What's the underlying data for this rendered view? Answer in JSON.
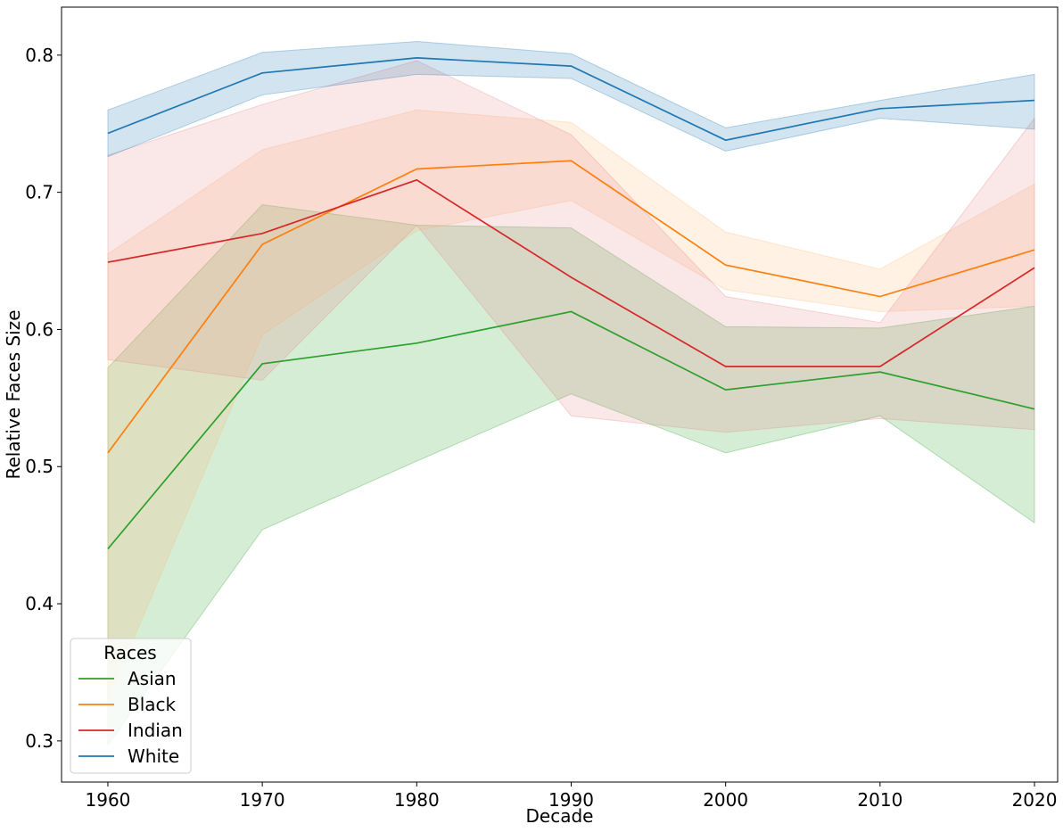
{
  "chart_data": {
    "type": "line",
    "title": "",
    "xlabel": "Decade",
    "ylabel": "Relative Faces Size",
    "x": [
      1960,
      1970,
      1980,
      1990,
      2000,
      2010,
      2020
    ],
    "xticks": [
      "1960",
      "1970",
      "1980",
      "1990",
      "2000",
      "2010",
      "2020"
    ],
    "yticks": [
      "0.3",
      "0.4",
      "0.5",
      "0.6",
      "0.7",
      "0.8"
    ],
    "ylim": [
      0.27,
      0.835
    ],
    "xlim": [
      1957,
      2021.5
    ],
    "grid": false,
    "legend": {
      "title": "Races",
      "placement": "lower-left"
    },
    "series": [
      {
        "name": "Asian",
        "color": "#2ca02c",
        "fill": "#2ca02c",
        "values": [
          0.44,
          0.575,
          0.59,
          0.613,
          0.556,
          0.569,
          0.542
        ],
        "ci_low": [
          0.297,
          0.454,
          0.504,
          0.553,
          0.51,
          0.537,
          0.459
        ],
        "ci_high": [
          0.572,
          0.691,
          0.676,
          0.674,
          0.602,
          0.601,
          0.617
        ]
      },
      {
        "name": "Black",
        "color": "#ff7f0e",
        "fill": "#ffbb78",
        "values": [
          0.51,
          0.662,
          0.717,
          0.723,
          0.647,
          0.624,
          0.658
        ],
        "ci_low": [
          0.33,
          0.596,
          0.672,
          0.694,
          0.629,
          0.613,
          0.617
        ],
        "ci_high": [
          0.655,
          0.731,
          0.76,
          0.751,
          0.671,
          0.644,
          0.706
        ]
      },
      {
        "name": "Indian",
        "color": "#d62728",
        "fill": "#e48587",
        "values": [
          0.649,
          0.67,
          0.709,
          0.638,
          0.573,
          0.573,
          0.645
        ],
        "ci_low": [
          0.578,
          0.563,
          0.676,
          0.537,
          0.525,
          0.535,
          0.527
        ],
        "ci_high": [
          0.727,
          0.764,
          0.796,
          0.742,
          0.624,
          0.605,
          0.754
        ]
      },
      {
        "name": "White",
        "color": "#1f77b4",
        "fill": "#1f77b4",
        "values": [
          0.743,
          0.787,
          0.798,
          0.792,
          0.738,
          0.761,
          0.767
        ],
        "ci_low": [
          0.726,
          0.771,
          0.786,
          0.783,
          0.73,
          0.754,
          0.746
        ],
        "ci_high": [
          0.76,
          0.802,
          0.81,
          0.801,
          0.747,
          0.767,
          0.786
        ]
      }
    ]
  }
}
